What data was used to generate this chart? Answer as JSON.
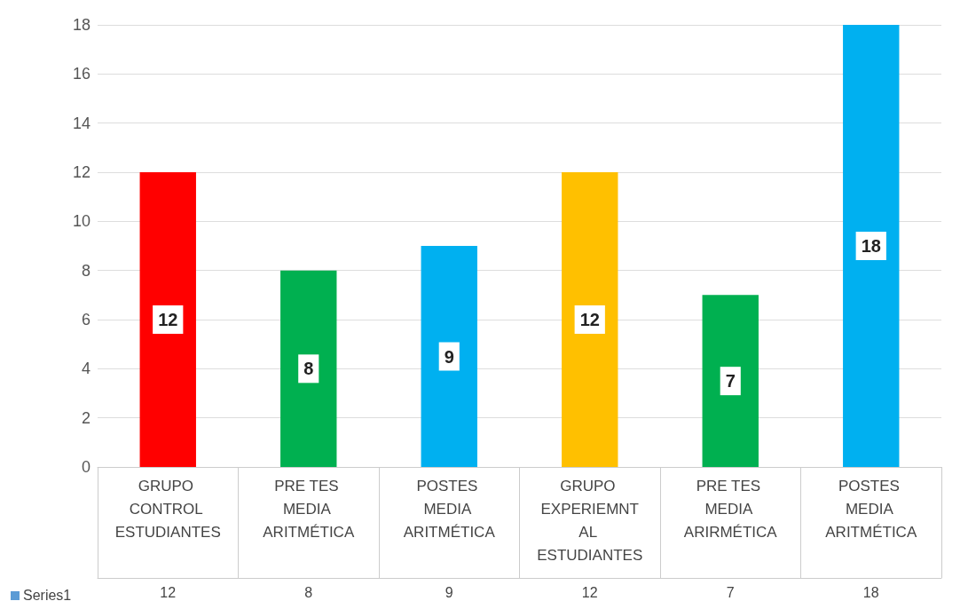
{
  "chart_data": {
    "type": "bar",
    "categories": [
      "GRUPO CONTROL ESTUDIANTES",
      "PRE TES MEDIA ARITMÉTICA",
      "POSTES MEDIA ARITMÉTICA",
      "GRUPO EXPERIEMNTAL ESTUDIANTES",
      "PRE TES MEDIA ARIRMÉTICA",
      "POSTES MEDIA ARITMÉTICA"
    ],
    "series": [
      {
        "name": "Series1",
        "color": "#5b9bd5",
        "colors": [
          "#ff0000",
          "#00b050",
          "#00b0f0",
          "#ffc000",
          "#00b050",
          "#00b0f0"
        ],
        "values": [
          12,
          8,
          9,
          12,
          7,
          18
        ],
        "value_labels": [
          "12",
          "8",
          "9",
          "12",
          "7",
          "18"
        ]
      }
    ],
    "ylim": [
      0,
      18
    ],
    "yticks": [
      0,
      2,
      4,
      6,
      8,
      10,
      12,
      14,
      16,
      18
    ],
    "grid": "y",
    "data_labels": true,
    "legend": "bottom left"
  }
}
